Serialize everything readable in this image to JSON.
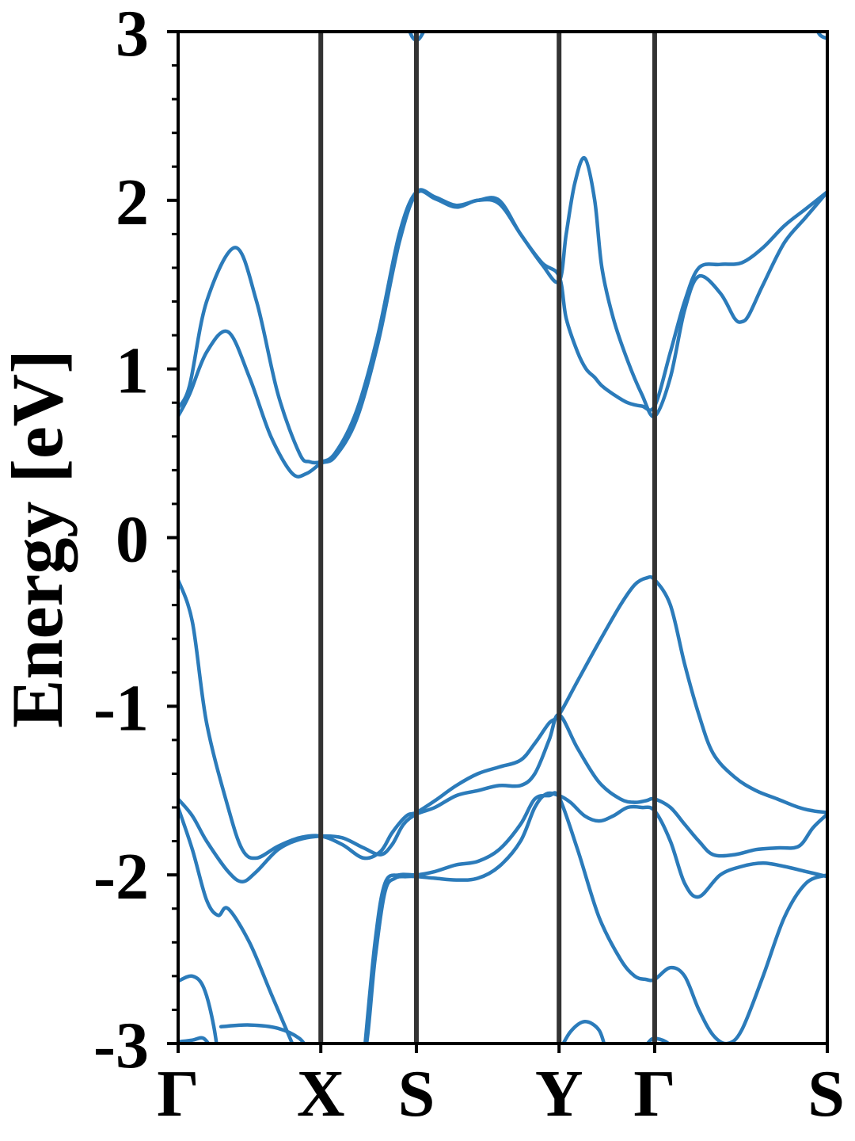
{
  "chart_data": {
    "type": "line",
    "ylabel": "Energy [eV]",
    "ylim": [
      -3,
      3
    ],
    "xlim": [
      0,
      4.55
    ],
    "y_ticks": [
      -3,
      -2,
      -1,
      0,
      1,
      2,
      3
    ],
    "y_minor_step": 0.2,
    "grid": false,
    "line_color": "#2b7bba",
    "kpath_color": "#333333",
    "kpoints": [
      {
        "label": "Γ",
        "x": 0
      },
      {
        "label": "X",
        "x": 1.0
      },
      {
        "label": "S",
        "x": 1.67
      },
      {
        "label": "Y",
        "x": 2.67
      },
      {
        "label": "Γ",
        "x": 3.34
      },
      {
        "label": "S",
        "x": 4.55
      }
    ],
    "series": [
      {
        "x": [
          0,
          0.08,
          0.2,
          0.4,
          0.55,
          0.7,
          0.85,
          0.92,
          1.0,
          1.1,
          1.25,
          1.4,
          1.55,
          1.67,
          1.8,
          1.95,
          2.1,
          2.25,
          2.4,
          2.55,
          2.67,
          2.72,
          2.8,
          2.86,
          2.92,
          2.97,
          3.05,
          3.15,
          3.25,
          3.34,
          3.45,
          3.55,
          3.65,
          3.8,
          3.95,
          4.1,
          4.25,
          4.4,
          4.55
        ],
        "y": [
          0.77,
          0.9,
          1.4,
          1.72,
          1.4,
          0.85,
          0.5,
          0.45,
          0.45,
          0.5,
          0.75,
          1.2,
          1.8,
          2.05,
          2.02,
          1.97,
          2.0,
          2.0,
          1.8,
          1.63,
          1.55,
          1.3,
          1.1,
          1.0,
          0.95,
          0.9,
          0.85,
          0.8,
          0.78,
          0.78,
          1.1,
          1.4,
          1.6,
          1.62,
          1.63,
          1.72,
          1.85,
          1.95,
          2.05
        ]
      },
      {
        "x": [
          0,
          0.08,
          0.2,
          0.35,
          0.5,
          0.65,
          0.8,
          0.9,
          1.0,
          1.1,
          1.25,
          1.4,
          1.55,
          1.67,
          1.8,
          1.95,
          2.1,
          2.25,
          2.4,
          2.55,
          2.67,
          2.72,
          2.78,
          2.85,
          2.92,
          2.97,
          3.05,
          3.15,
          3.25,
          3.34,
          3.45,
          3.55,
          3.65,
          3.8,
          3.9,
          3.95,
          4.0,
          4.1,
          4.25,
          4.4,
          4.55
        ],
        "y": [
          0.72,
          0.85,
          1.1,
          1.22,
          0.95,
          0.6,
          0.38,
          0.38,
          0.44,
          0.48,
          0.7,
          1.15,
          1.75,
          2.04,
          2.01,
          1.96,
          2.0,
          1.98,
          1.8,
          1.62,
          1.52,
          1.8,
          2.1,
          2.25,
          2.0,
          1.6,
          1.3,
          1.05,
          0.85,
          0.72,
          0.95,
          1.35,
          1.55,
          1.45,
          1.3,
          1.28,
          1.32,
          1.5,
          1.75,
          1.9,
          2.05
        ]
      },
      {
        "x": [
          0,
          0.1,
          0.2,
          0.35,
          0.45,
          0.55,
          0.7,
          0.85,
          1.0,
          1.15,
          1.3,
          1.42,
          1.5,
          1.6,
          1.67,
          1.8,
          1.95,
          2.1,
          2.25,
          2.4,
          2.5,
          2.6,
          2.67,
          2.8,
          2.95,
          3.1,
          3.2,
          3.28,
          3.34,
          3.45,
          3.55,
          3.65,
          3.75,
          3.9,
          4.05,
          4.2,
          4.35,
          4.45,
          4.55
        ],
        "y": [
          -0.25,
          -0.5,
          -1.1,
          -1.6,
          -1.85,
          -1.9,
          -1.83,
          -1.78,
          -1.77,
          -1.82,
          -1.9,
          -1.86,
          -1.75,
          -1.65,
          -1.63,
          -1.56,
          -1.47,
          -1.4,
          -1.36,
          -1.32,
          -1.22,
          -1.1,
          -1.05,
          -0.85,
          -0.62,
          -0.4,
          -0.28,
          -0.24,
          -0.25,
          -0.4,
          -0.75,
          -1.05,
          -1.28,
          -1.42,
          -1.5,
          -1.55,
          -1.6,
          -1.62,
          -1.63
        ]
      },
      {
        "x": [
          0,
          0.1,
          0.2,
          0.35,
          0.45,
          0.55,
          0.7,
          0.85,
          1.0,
          1.15,
          1.3,
          1.42,
          1.5,
          1.58,
          1.67,
          1.8,
          1.95,
          2.1,
          2.25,
          2.4,
          2.5,
          2.6,
          2.67,
          2.8,
          2.95,
          3.1,
          3.2,
          3.28,
          3.34,
          3.45,
          3.55,
          3.65,
          3.75,
          3.9,
          4.05,
          4.2,
          4.35,
          4.45,
          4.55
        ],
        "y": [
          -1.55,
          -1.65,
          -1.8,
          -1.98,
          -2.04,
          -1.98,
          -1.85,
          -1.79,
          -1.77,
          -1.78,
          -1.84,
          -1.88,
          -1.82,
          -1.7,
          -1.64,
          -1.6,
          -1.53,
          -1.5,
          -1.47,
          -1.47,
          -1.4,
          -1.2,
          -1.05,
          -1.25,
          -1.45,
          -1.55,
          -1.57,
          -1.56,
          -1.55,
          -1.6,
          -1.7,
          -1.8,
          -1.88,
          -1.88,
          -1.85,
          -1.84,
          -1.83,
          -1.72,
          -1.64
        ]
      },
      {
        "x": [
          0,
          0.1,
          0.2,
          0.28,
          0.35,
          0.5,
          0.65,
          0.8,
          0.95,
          1.0,
          1.15,
          1.3,
          1.38,
          1.45,
          1.52,
          1.6,
          1.67,
          1.8,
          1.95,
          2.1,
          2.25,
          2.4,
          2.5,
          2.58,
          2.67,
          2.75,
          2.85,
          2.95,
          3.05,
          3.15,
          3.25,
          3.34,
          3.45,
          3.55,
          3.65,
          3.8,
          3.95,
          4.1,
          4.25,
          4.4,
          4.55
        ],
        "y": [
          -1.6,
          -1.85,
          -2.15,
          -2.24,
          -2.2,
          -2.4,
          -2.7,
          -3.0,
          -3.3,
          -3.3,
          -3.3,
          -3.1,
          -2.5,
          -2.1,
          -2.02,
          -2.01,
          -2.01,
          -2.02,
          -2.03,
          -2.02,
          -1.95,
          -1.8,
          -1.6,
          -1.52,
          -1.53,
          -1.57,
          -1.65,
          -1.68,
          -1.65,
          -1.6,
          -1.6,
          -1.62,
          -1.8,
          -2.05,
          -2.13,
          -2.0,
          -1.95,
          -1.93,
          -1.95,
          -1.98,
          -2.01
        ]
      },
      {
        "x": [
          1.3,
          1.38,
          1.45,
          1.55,
          1.67,
          1.8,
          1.95,
          2.1,
          2.25,
          2.4,
          2.5,
          2.6,
          2.67,
          2.8,
          2.95,
          3.1,
          3.2,
          3.28,
          3.34,
          3.45,
          3.55,
          3.65,
          3.75,
          3.85,
          3.95,
          4.1,
          4.25,
          4.4,
          4.55
        ],
        "y": [
          -3.1,
          -2.4,
          -2.05,
          -2.0,
          -2.0,
          -1.98,
          -1.94,
          -1.92,
          -1.85,
          -1.7,
          -1.55,
          -1.53,
          -1.54,
          -1.85,
          -2.25,
          -2.5,
          -2.6,
          -2.62,
          -2.62,
          -2.55,
          -2.6,
          -2.8,
          -2.95,
          -3.0,
          -2.92,
          -2.6,
          -2.25,
          -2.05,
          -2.0
        ]
      },
      {
        "x": [
          0,
          0.1,
          0.18,
          0.25,
          0.3
        ],
        "y": [
          -2.63,
          -2.6,
          -2.67,
          -2.9,
          -3.2
        ]
      },
      {
        "x": [
          0.3,
          0.5,
          0.7,
          0.85,
          0.92
        ],
        "y": [
          -2.9,
          -2.89,
          -2.91,
          -2.97,
          -3.05
        ]
      },
      {
        "x": [
          0,
          0.1,
          0.18,
          0.25
        ],
        "y": [
          -2.99,
          -2.98,
          -2.97,
          -3.05
        ]
      },
      {
        "x": [
          2.67,
          2.75,
          2.85,
          2.95,
          3.0
        ],
        "y": [
          -3.05,
          -2.93,
          -2.87,
          -2.92,
          -3.05
        ]
      },
      {
        "x": [
          3.25,
          3.3,
          3.34,
          3.42,
          3.5
        ],
        "y": [
          -3.05,
          -2.99,
          -2.97,
          -2.99,
          -3.05
        ]
      },
      {
        "x": [
          1.6,
          1.64,
          1.67,
          1.7,
          1.75
        ],
        "y": [
          3.05,
          2.97,
          2.95,
          2.97,
          3.05
        ]
      },
      {
        "x": [
          4.45,
          4.5,
          4.55
        ],
        "y": [
          3.05,
          2.98,
          2.96
        ]
      }
    ]
  }
}
